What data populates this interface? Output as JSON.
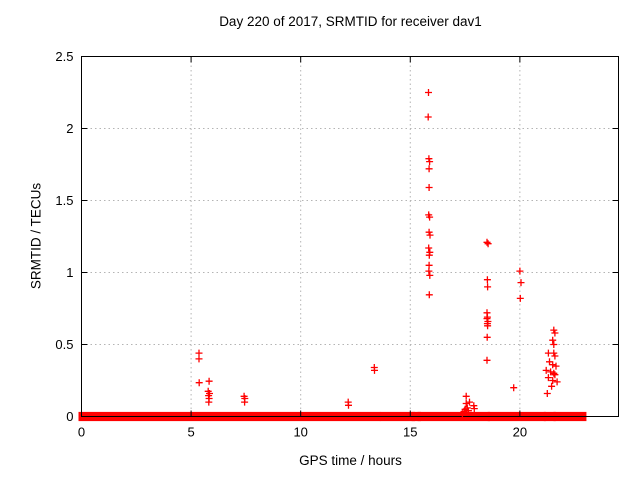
{
  "chart_data": {
    "type": "scatter",
    "title": "Day 220 of 2017, SRMTID for receiver dav1",
    "xlabel": "GPS time / hours",
    "ylabel": "SRMTID / TECUs",
    "xlim": [
      0,
      24.5
    ],
    "ylim": [
      0,
      2.5
    ],
    "x_ticks": [
      0,
      5,
      10,
      15,
      20
    ],
    "x_tick_labels": [
      "0",
      "5",
      "10",
      "15",
      "20"
    ],
    "y_ticks": [
      0,
      0.5,
      1,
      1.5,
      2,
      2.5
    ],
    "y_tick_labels": [
      "0",
      "0.5",
      "1",
      "1.5",
      "2",
      "2.5"
    ],
    "grid": true,
    "legend": "none",
    "marker": "plus",
    "colors": {
      "marker": "#ff0000",
      "grid": "#b4b4b4",
      "axis": "#000000",
      "background": "#ffffff"
    },
    "zero_line_segments": [
      [
        0,
        13.5
      ],
      [
        13.75,
        15.08
      ],
      [
        15.2,
        15.35
      ],
      [
        15.47,
        18.5
      ],
      [
        18.67,
        21.05
      ],
      [
        21.23,
        21.5
      ],
      [
        21.67,
        22.9
      ]
    ],
    "points": [
      [
        5.36,
        0.44
      ],
      [
        5.36,
        0.4
      ],
      [
        5.37,
        0.235
      ],
      [
        5.82,
        0.245
      ],
      [
        5.78,
        0.175
      ],
      [
        5.84,
        0.16
      ],
      [
        5.8,
        0.145
      ],
      [
        5.82,
        0.125
      ],
      [
        5.81,
        0.1
      ],
      [
        7.42,
        0.14
      ],
      [
        7.45,
        0.125
      ],
      [
        7.44,
        0.1
      ],
      [
        12.17,
        0.1
      ],
      [
        12.18,
        0.078
      ],
      [
        13.36,
        0.34
      ],
      [
        13.37,
        0.32
      ],
      [
        15.83,
        2.25
      ],
      [
        15.82,
        2.08
      ],
      [
        15.85,
        1.79
      ],
      [
        15.88,
        1.77
      ],
      [
        15.86,
        1.72
      ],
      [
        15.86,
        1.59
      ],
      [
        15.84,
        1.4
      ],
      [
        15.88,
        1.385
      ],
      [
        15.86,
        1.28
      ],
      [
        15.9,
        1.26
      ],
      [
        15.84,
        1.17
      ],
      [
        15.89,
        1.14
      ],
      [
        15.87,
        1.12
      ],
      [
        15.86,
        1.05
      ],
      [
        15.85,
        1.01
      ],
      [
        15.89,
        0.98
      ],
      [
        15.87,
        0.845
      ],
      [
        17.38,
        0.02
      ],
      [
        17.45,
        0.035
      ],
      [
        17.5,
        0.05
      ],
      [
        17.55,
        0.09
      ],
      [
        17.6,
        0.06
      ],
      [
        17.65,
        0.04
      ],
      [
        17.55,
        0.14
      ],
      [
        17.7,
        0.1
      ],
      [
        17.9,
        0.075
      ],
      [
        17.92,
        0.055
      ],
      [
        18.5,
        1.21
      ],
      [
        18.55,
        1.2
      ],
      [
        18.52,
        0.95
      ],
      [
        18.53,
        0.9
      ],
      [
        18.5,
        0.72
      ],
      [
        18.52,
        0.69
      ],
      [
        18.5,
        0.68
      ],
      [
        18.54,
        0.66
      ],
      [
        18.52,
        0.645
      ],
      [
        18.53,
        0.63
      ],
      [
        18.51,
        0.55
      ],
      [
        18.5,
        0.39
      ],
      [
        19.72,
        0.2
      ],
      [
        20.0,
        1.01
      ],
      [
        20.05,
        0.93
      ],
      [
        20.02,
        0.82
      ],
      [
        21.55,
        0.6
      ],
      [
        21.6,
        0.58
      ],
      [
        21.5,
        0.53
      ],
      [
        21.55,
        0.5
      ],
      [
        21.3,
        0.44
      ],
      [
        21.55,
        0.44
      ],
      [
        21.6,
        0.42
      ],
      [
        21.35,
        0.38
      ],
      [
        21.5,
        0.36
      ],
      [
        21.65,
        0.35
      ],
      [
        21.2,
        0.32
      ],
      [
        21.4,
        0.31
      ],
      [
        21.55,
        0.3
      ],
      [
        21.6,
        0.29
      ],
      [
        21.3,
        0.27
      ],
      [
        21.5,
        0.25
      ],
      [
        21.7,
        0.24
      ],
      [
        21.45,
        0.21
      ],
      [
        21.25,
        0.16
      ]
    ]
  }
}
